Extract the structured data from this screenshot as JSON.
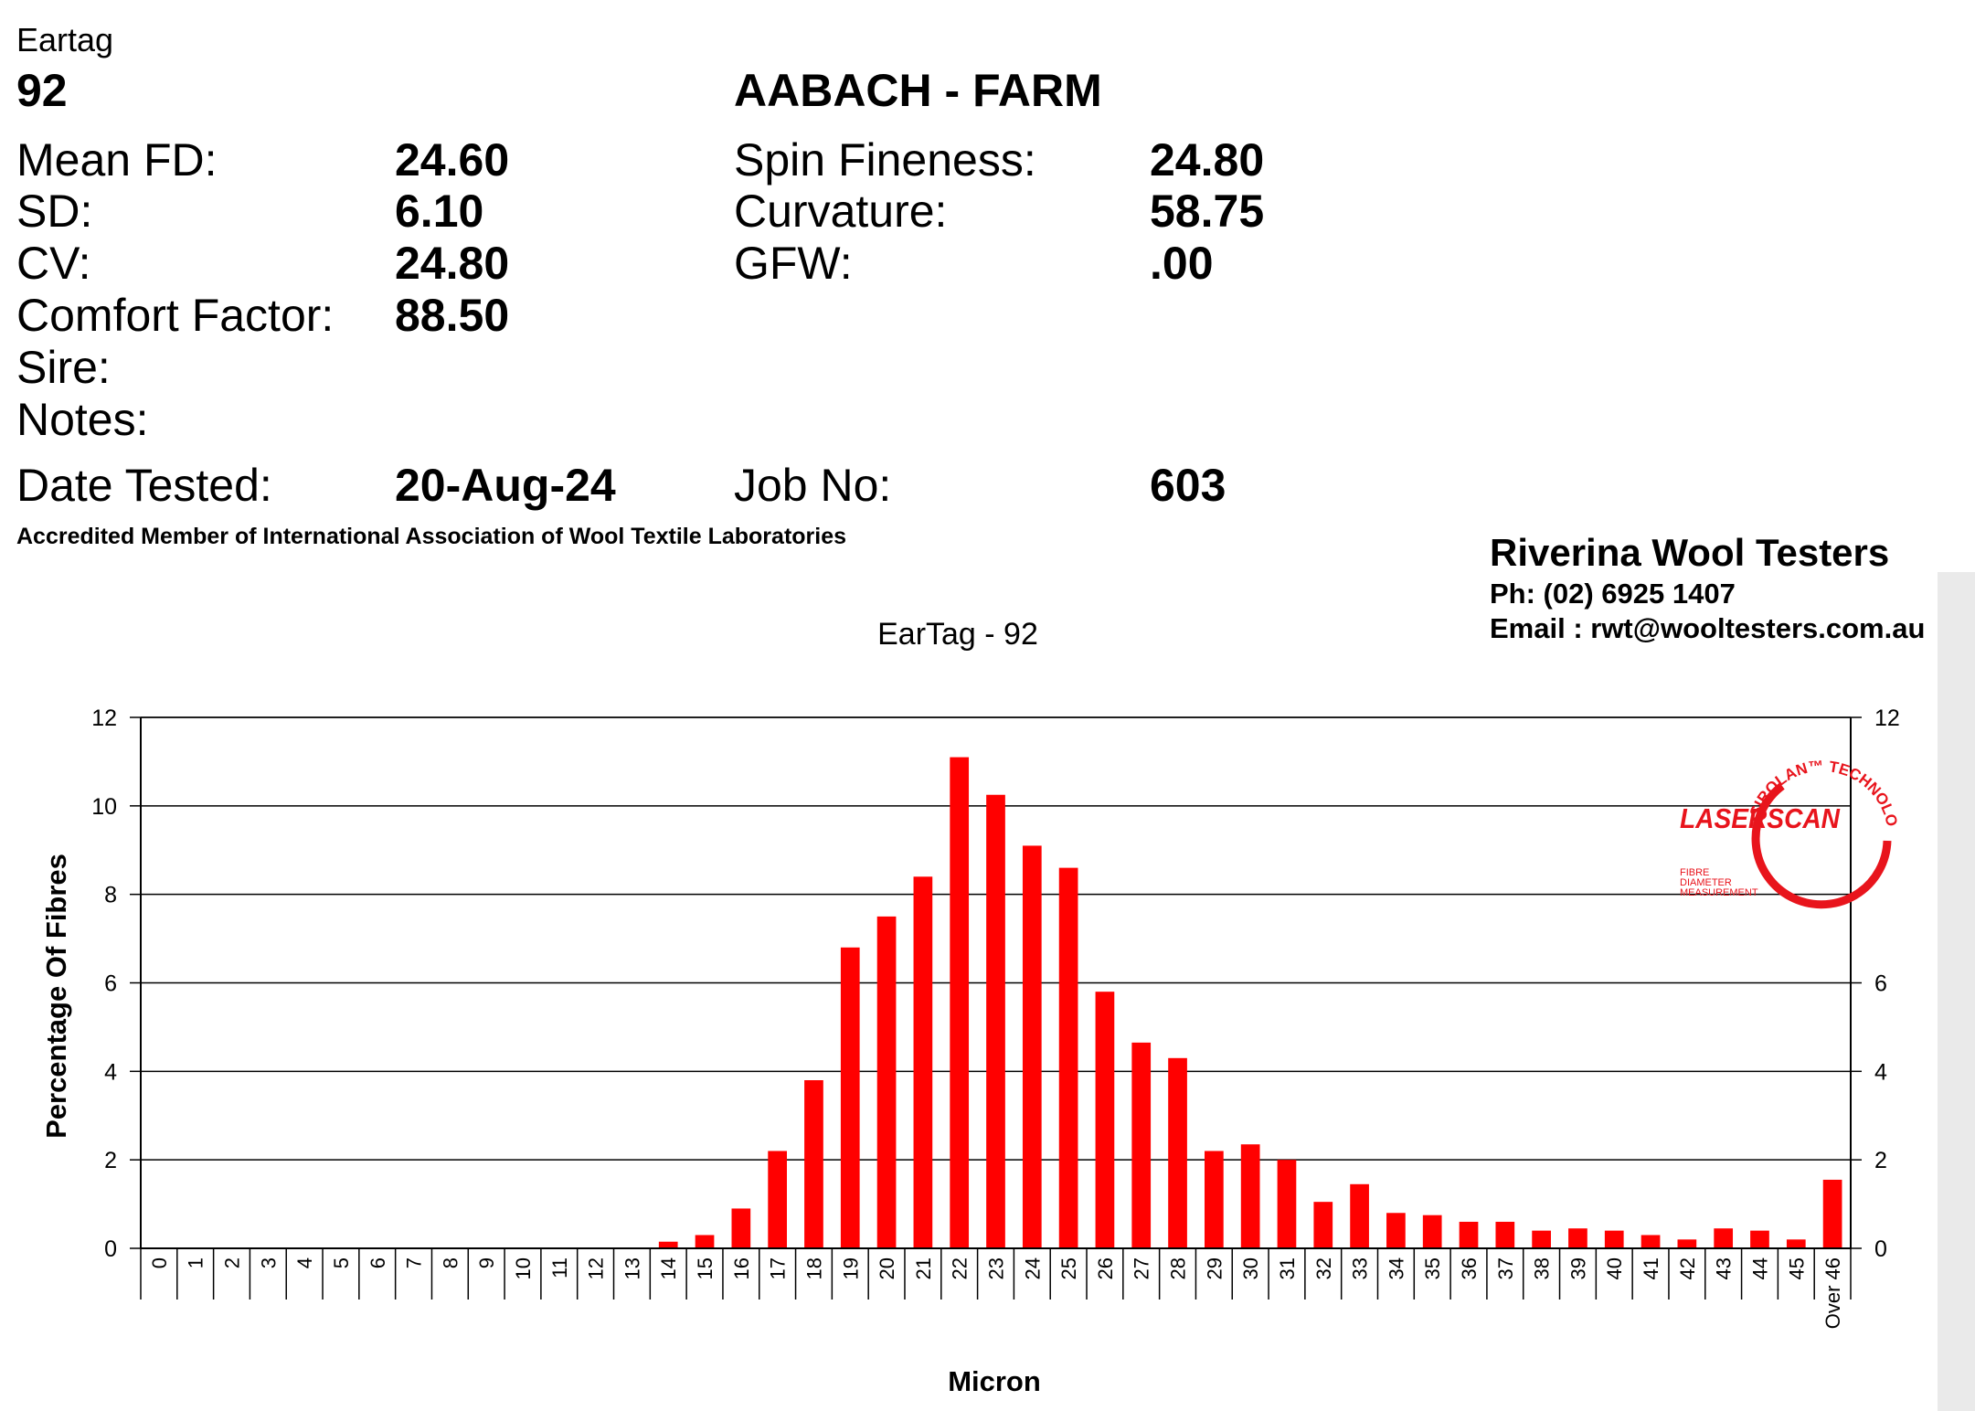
{
  "report": {
    "eartag_label": "Eartag",
    "eartag_value": "92",
    "farm_name": "AABACH - FARM",
    "left_fields": [
      {
        "label": "Mean FD:",
        "value": "24.60"
      },
      {
        "label": "SD:",
        "value": "6.10"
      },
      {
        "label": "CV:",
        "value": "24.80"
      },
      {
        "label": "Comfort Factor:",
        "value": "88.50"
      },
      {
        "label": "Sire:",
        "value": ""
      },
      {
        "label": "Notes:",
        "value": ""
      }
    ],
    "right_fields": [
      {
        "label": "Spin Fineness:",
        "value": "24.80"
      },
      {
        "label": "Curvature:",
        "value": "58.75"
      },
      {
        "label": "GFW:",
        "value": ".00"
      }
    ],
    "date_tested_label": "Date Tested:",
    "date_tested_value": "20-Aug-24",
    "job_no_label": "Job No:",
    "job_no_value": "603",
    "accreditation": "Accredited Member of International Association of Wool Textile Laboratories"
  },
  "lab": {
    "name": "Riverina Wool Testers",
    "phone": "Ph: (02) 6925 1407",
    "email": "Email : rwt@wooltesters.com.au"
  },
  "logo": {
    "brand": "LASERSCAN",
    "arc_text": "SIROLAN™ TECHNOLOGY",
    "sub_lines": [
      "FIBRE",
      "DIAMETER",
      "MEASUREMENT"
    ],
    "color": "#e8141c"
  },
  "chart_data": {
    "type": "bar",
    "title": "EarTag - 92",
    "xlabel": "Micron",
    "ylabel": "Percentage Of Fibres",
    "ylim": [
      0,
      12
    ],
    "yticks": [
      0,
      2,
      4,
      6,
      8,
      10,
      12
    ],
    "right_yticks": [
      0,
      2,
      4,
      6,
      12
    ],
    "grid": true,
    "bar_color": "#ff0000",
    "categories": [
      "0",
      "1",
      "2",
      "3",
      "4",
      "5",
      "6",
      "7",
      "8",
      "9",
      "10",
      "11",
      "12",
      "13",
      "14",
      "15",
      "16",
      "17",
      "18",
      "19",
      "20",
      "21",
      "22",
      "23",
      "24",
      "25",
      "26",
      "27",
      "28",
      "29",
      "30",
      "31",
      "32",
      "33",
      "34",
      "35",
      "36",
      "37",
      "38",
      "39",
      "40",
      "41",
      "42",
      "43",
      "44",
      "45",
      "Over 46"
    ],
    "values": [
      0,
      0,
      0,
      0,
      0,
      0,
      0,
      0,
      0,
      0,
      0,
      0,
      0,
      0,
      0.15,
      0.3,
      0.9,
      2.2,
      3.8,
      6.8,
      7.5,
      8.4,
      11.1,
      10.25,
      9.1,
      8.6,
      5.8,
      4.65,
      4.3,
      2.2,
      2.35,
      2.0,
      1.05,
      1.45,
      0.8,
      0.75,
      0.6,
      0.6,
      0.4,
      0.45,
      0.4,
      0.3,
      0.2,
      0.45,
      0.4,
      0.2,
      1.55
    ]
  }
}
